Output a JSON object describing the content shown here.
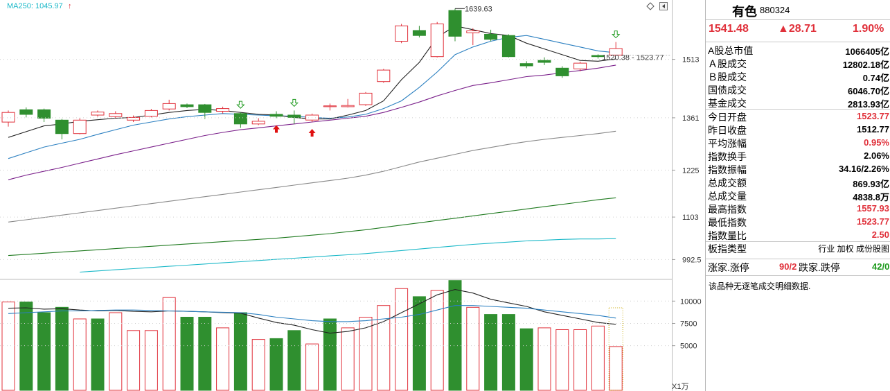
{
  "header": {
    "ma250_label": "MA250: 1045.97",
    "ma250_color": "#1ab8c8",
    "arrow_up_glyph": "↑"
  },
  "colors": {
    "up": "#e0303a",
    "down": "#2f8f2f",
    "ma5": "#222222",
    "ma10": "#2a7fc0",
    "ma20": "#7a1f8a",
    "ma60": "#888888",
    "ma120": "#1f7a1f",
    "ma250": "#1ab8c8",
    "axis_text": "#333333"
  },
  "chart_data": [
    {
      "type": "candlestick",
      "ylim": [
        950,
        1660
      ],
      "y_ticks": [
        "1513",
        "1361",
        "1225",
        "1103",
        "992.5"
      ],
      "annotations": {
        "high_label": "1639.63",
        "range_label": "1520.38 - 1523.77"
      },
      "candles": [
        {
          "o": 1350,
          "c": 1375,
          "h": 1380,
          "l": 1338
        },
        {
          "o": 1382,
          "c": 1370,
          "h": 1388,
          "l": 1362
        },
        {
          "o": 1382,
          "c": 1360,
          "h": 1385,
          "l": 1350
        },
        {
          "o": 1355,
          "c": 1320,
          "h": 1358,
          "l": 1305
        },
        {
          "o": 1320,
          "c": 1355,
          "h": 1360,
          "l": 1318
        },
        {
          "o": 1368,
          "c": 1376,
          "h": 1380,
          "l": 1364
        },
        {
          "o": 1364,
          "c": 1372,
          "h": 1378,
          "l": 1360
        },
        {
          "o": 1355,
          "c": 1362,
          "h": 1367,
          "l": 1350
        },
        {
          "o": 1365,
          "c": 1380,
          "h": 1384,
          "l": 1362
        },
        {
          "o": 1384,
          "c": 1398,
          "h": 1408,
          "l": 1380
        },
        {
          "o": 1395,
          "c": 1390,
          "h": 1398,
          "l": 1386
        },
        {
          "o": 1395,
          "c": 1375,
          "h": 1397,
          "l": 1358
        },
        {
          "o": 1378,
          "c": 1385,
          "h": 1390,
          "l": 1372
        },
        {
          "o": 1372,
          "c": 1345,
          "h": 1375,
          "l": 1335
        },
        {
          "o": 1345,
          "c": 1352,
          "h": 1360,
          "l": 1342
        },
        {
          "o": 1370,
          "c": 1365,
          "h": 1378,
          "l": 1360
        },
        {
          "o": 1368,
          "c": 1362,
          "h": 1380,
          "l": 1345
        },
        {
          "o": 1355,
          "c": 1368,
          "h": 1372,
          "l": 1350
        },
        {
          "o": 1392,
          "c": 1392,
          "h": 1398,
          "l": 1380
        },
        {
          "o": 1390,
          "c": 1393,
          "h": 1410,
          "l": 1388
        },
        {
          "o": 1395,
          "c": 1425,
          "h": 1428,
          "l": 1392
        },
        {
          "o": 1455,
          "c": 1485,
          "h": 1488,
          "l": 1452
        },
        {
          "o": 1560,
          "c": 1600,
          "h": 1605,
          "l": 1555
        },
        {
          "o": 1588,
          "c": 1575,
          "h": 1600,
          "l": 1570
        },
        {
          "o": 1520,
          "c": 1605,
          "h": 1610,
          "l": 1518
        },
        {
          "o": 1640,
          "c": 1573,
          "h": 1645,
          "l": 1560
        },
        {
          "o": 1582,
          "c": 1587,
          "h": 1594,
          "l": 1550
        },
        {
          "o": 1578,
          "c": 1565,
          "h": 1590,
          "l": 1560
        },
        {
          "o": 1575,
          "c": 1520,
          "h": 1578,
          "l": 1518
        },
        {
          "o": 1502,
          "c": 1496,
          "h": 1508,
          "l": 1490
        },
        {
          "o": 1510,
          "c": 1505,
          "h": 1518,
          "l": 1498
        },
        {
          "o": 1490,
          "c": 1470,
          "h": 1495,
          "l": 1465
        },
        {
          "o": 1488,
          "c": 1503,
          "h": 1507,
          "l": 1482
        },
        {
          "o": 1523,
          "c": 1520,
          "h": 1526,
          "l": 1515
        },
        {
          "o": 1524,
          "c": 1541,
          "h": 1558,
          "l": 1523
        }
      ],
      "ma5": [
        1310,
        1325,
        1340,
        1345,
        1352,
        1356,
        1360,
        1362,
        1368,
        1375,
        1380,
        1383,
        1380,
        1375,
        1370,
        1368,
        1362,
        1358,
        1358,
        1368,
        1380,
        1405,
        1460,
        1505,
        1570,
        1600,
        1590,
        1580,
        1575,
        1555,
        1540,
        1525,
        1510,
        1508,
        1514
      ],
      "ma10": [
        1255,
        1270,
        1285,
        1295,
        1305,
        1318,
        1330,
        1342,
        1350,
        1358,
        1364,
        1368,
        1372,
        1370,
        1368,
        1366,
        1365,
        1362,
        1360,
        1363,
        1370,
        1385,
        1405,
        1440,
        1480,
        1525,
        1545,
        1560,
        1570,
        1575,
        1565,
        1555,
        1545,
        1535,
        1530
      ],
      "ma20": [
        1200,
        1212,
        1222,
        1232,
        1243,
        1254,
        1265,
        1275,
        1285,
        1295,
        1305,
        1315,
        1323,
        1330,
        1335,
        1340,
        1345,
        1350,
        1355,
        1360,
        1365,
        1375,
        1388,
        1402,
        1418,
        1432,
        1445,
        1452,
        1460,
        1468,
        1472,
        1478,
        1484,
        1490,
        1498
      ],
      "ma60": [
        1090,
        1096,
        1102,
        1108,
        1114,
        1120,
        1126,
        1132,
        1138,
        1144,
        1150,
        1156,
        1162,
        1168,
        1174,
        1180,
        1186,
        1192,
        1198,
        1204,
        1212,
        1222,
        1234,
        1246,
        1256,
        1266,
        1276,
        1284,
        1292,
        1299,
        1305,
        1310,
        1315,
        1320,
        1326
      ],
      "ma120": [
        1003,
        1006,
        1009,
        1012,
        1015,
        1018,
        1021,
        1024,
        1027,
        1030,
        1033,
        1036,
        1039,
        1042,
        1045,
        1048,
        1052,
        1056,
        1060,
        1065,
        1070,
        1076,
        1082,
        1088,
        1094,
        1100,
        1106,
        1112,
        1118,
        1124,
        1130,
        1136,
        1142,
        1148,
        1153
      ],
      "ma250": [
        null,
        null,
        null,
        null,
        960,
        963,
        966,
        969,
        972,
        975,
        978,
        981,
        984,
        987,
        990,
        993,
        996,
        999,
        1002,
        1005,
        1008,
        1012,
        1016,
        1020,
        1024,
        1028,
        1032,
        1035,
        1038,
        1041,
        1043,
        1045,
        1046,
        1046,
        1047
      ]
    },
    {
      "type": "bar",
      "ylim": [
        0,
        12200
      ],
      "y_ticks": [
        "10000",
        "7500",
        "5000"
      ],
      "unit_label": "X1万",
      "values": [
        9900,
        9900,
        8700,
        9300,
        8000,
        8000,
        8700,
        6700,
        6700,
        10400,
        8200,
        8200,
        7000,
        8700,
        5700,
        5800,
        6700,
        5200,
        8000,
        7000,
        8200,
        9500,
        11400,
        10500,
        11200,
        12300,
        9300,
        8500,
        8500,
        6900,
        7000,
        6800,
        6800,
        7200,
        4900
      ],
      "up_flags": [
        true,
        false,
        false,
        false,
        true,
        false,
        true,
        true,
        true,
        true,
        false,
        false,
        true,
        false,
        true,
        false,
        false,
        true,
        false,
        true,
        true,
        true,
        true,
        false,
        true,
        false,
        true,
        false,
        false,
        false,
        true,
        true,
        true,
        true,
        true
      ],
      "mavol1": [
        9200,
        9250,
        9100,
        9150,
        9000,
        8900,
        8950,
        8850,
        8800,
        8900,
        8850,
        8800,
        8700,
        8650,
        8100,
        7600,
        7300,
        6800,
        6400,
        6600,
        7000,
        7700,
        8700,
        9700,
        10700,
        11300,
        10900,
        10200,
        9800,
        9400,
        8800,
        8400,
        8000,
        7600,
        7400
      ],
      "mavol2": [
        8600,
        8700,
        8800,
        8900,
        8900,
        8950,
        9000,
        9000,
        8950,
        8900,
        8850,
        8800,
        8750,
        8700,
        8500,
        8200,
        8000,
        7800,
        7700,
        7700,
        7800,
        8000,
        8200,
        8500,
        9000,
        9500,
        9500,
        9400,
        9300,
        9200,
        9000,
        8800,
        8600,
        8400,
        8100
      ]
    }
  ],
  "panel": {
    "title": "有色",
    "code": "880324",
    "price": "1541.48",
    "change": "▲28.71",
    "percent": "1.90%",
    "rows": [
      {
        "key": "A股总市值",
        "value": "1066405亿",
        "color": "black"
      },
      {
        "key": "Ａ股成交",
        "value": "12802.18亿",
        "color": "black"
      },
      {
        "key": "Ｂ股成交",
        "value": "0.74亿",
        "color": "black"
      },
      {
        "key": "国债成交",
        "value": "6046.70亿",
        "color": "black"
      },
      {
        "key": "基金成交",
        "value": "2813.93亿",
        "color": "black"
      },
      {
        "key": "今日开盘",
        "value": "1523.77",
        "color": "red"
      },
      {
        "key": "昨日收盘",
        "value": "1512.77",
        "color": "black"
      },
      {
        "key": "平均涨幅",
        "value": "0.95%",
        "color": "red"
      },
      {
        "key": "指数换手",
        "value": "2.06%",
        "color": "black"
      },
      {
        "key": "指数振幅",
        "value": "34.16/2.26%",
        "color": "black"
      },
      {
        "key": "总成交额",
        "value": "869.93亿",
        "color": "black"
      },
      {
        "key": "总成交量",
        "value": "4838.8万",
        "color": "black"
      },
      {
        "key": "最高指数",
        "value": "1557.93",
        "color": "red"
      },
      {
        "key": "最低指数",
        "value": "1523.77",
        "color": "red"
      },
      {
        "key": "指数量比",
        "value": "2.50",
        "color": "red"
      },
      {
        "key": "板指类型",
        "value": "行业 加权 成份股图",
        "color": "black"
      }
    ],
    "breadth": {
      "up_label": "涨家.涨停",
      "up_value": "90/2",
      "down_label": "跌家.跌停",
      "down_value": "42/0"
    },
    "note": "该品种无逐笔成交明细数据."
  }
}
